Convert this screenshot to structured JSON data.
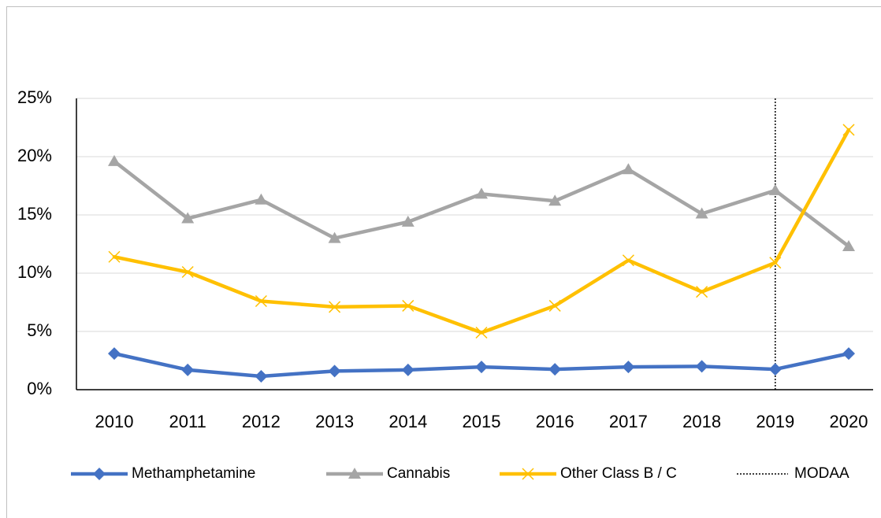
{
  "chart_data": {
    "type": "line",
    "categories": [
      "2010",
      "2011",
      "2012",
      "2013",
      "2014",
      "2015",
      "2016",
      "2017",
      "2018",
      "2019",
      "2020"
    ],
    "series": [
      {
        "name": "Methamphetamine",
        "color": "#4472c4",
        "marker": "diamond",
        "values": [
          3.1,
          1.7,
          1.15,
          1.6,
          1.7,
          1.95,
          1.75,
          1.95,
          2.0,
          1.75,
          3.1
        ]
      },
      {
        "name": "Cannabis",
        "color": "#a5a5a5",
        "marker": "triangle",
        "values": [
          19.6,
          14.7,
          16.3,
          13.0,
          14.4,
          16.8,
          16.2,
          18.9,
          15.1,
          17.1,
          12.3
        ]
      },
      {
        "name": "Other Class B / C",
        "color": "#ffc000",
        "marker": "x",
        "values": [
          11.4,
          10.1,
          7.6,
          7.1,
          7.2,
          4.9,
          7.2,
          11.1,
          8.4,
          10.9,
          22.3
        ]
      }
    ],
    "vline": {
      "name": "MODAA",
      "x": "2019",
      "color": "#000000",
      "style": "dotted"
    },
    "ylim": [
      0,
      25
    ],
    "yticks": [
      {
        "value": 0,
        "label": "0%"
      },
      {
        "value": 5,
        "label": "5%"
      },
      {
        "value": 10,
        "label": "10%"
      },
      {
        "value": 15,
        "label": "15%"
      },
      {
        "value": 20,
        "label": "20%"
      },
      {
        "value": 25,
        "label": "25%"
      }
    ],
    "grid": true,
    "legend": "bottom"
  }
}
